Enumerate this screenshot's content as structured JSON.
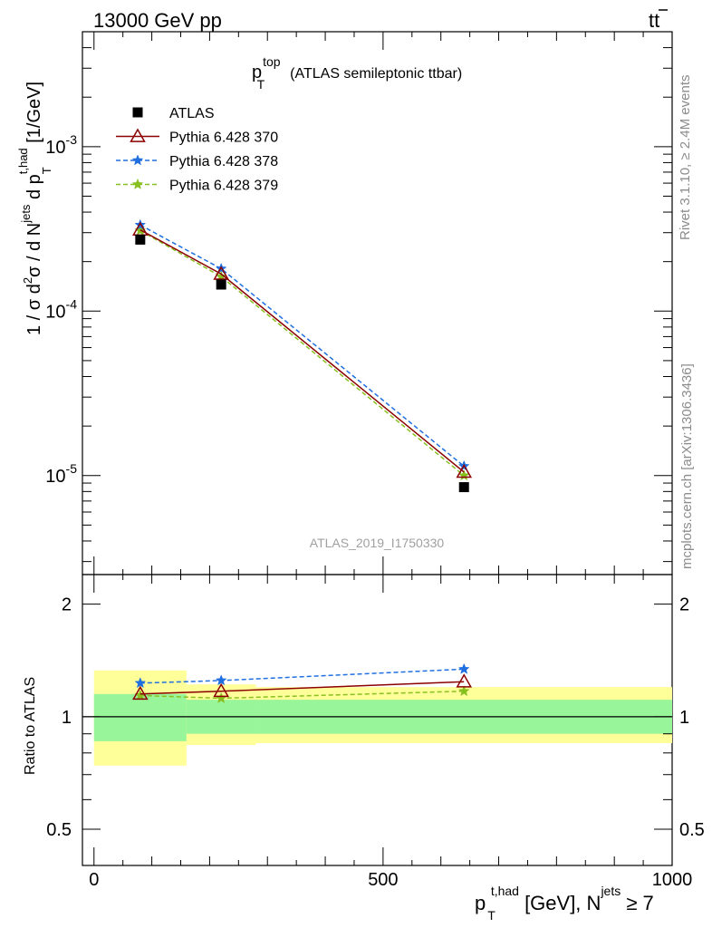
{
  "header": {
    "energy": "13000 GeV pp",
    "process_main": "tt",
    "process_bar": "t"
  },
  "title": {
    "main": "p",
    "sup": "top",
    "sub": "T",
    "rest": "(ATLAS semileptonic ttbar)"
  },
  "side_texts": {
    "rivet": "Rivet 3.1.10, ≥ 2.4M events",
    "mcplots": "mcplots.cern.ch [arXiv:1306.3436]"
  },
  "watermark": "ATLAS_2019_I1750330",
  "ylabel_main": {
    "pre": "1 / σ d",
    "sup1": "2",
    "mid1": "σ /  d N",
    "sup2": "jets",
    "mid2": " d p",
    "sub": "T",
    "sup3": "t,had",
    "post": " [1/GeV]"
  },
  "ylabel_ratio": "Ratio to ATLAS",
  "xlabel": {
    "pre": "p",
    "sub": "T",
    "sup": "t,had",
    "mid": " [GeV], N",
    "sup2": "jets",
    "post": " ≥ 7"
  },
  "legend": [
    {
      "label": "ATLAS",
      "color": "#000000",
      "marker": "square",
      "line": "none"
    },
    {
      "label": "Pythia 6.428 370",
      "color": "#8b0000",
      "marker": "triangle-open",
      "line": "solid"
    },
    {
      "label": "Pythia 6.428 378",
      "color": "#1f6fe0",
      "marker": "star",
      "line": "dashed"
    },
    {
      "label": "Pythia 6.428 379",
      "color": "#88c020",
      "marker": "star",
      "line": "dashed"
    }
  ],
  "chart_data": [
    {
      "type": "line",
      "panel": "main",
      "title": "p_T^top (ATLAS semileptonic ttbar)",
      "xlabel": "p_T^t,had [GeV], N^jets ≥ 7",
      "ylabel": "1 / σ d²σ / d N^jets d p_T^t,had [1/GeV]",
      "yscale": "log",
      "xlim": [
        -20,
        1000
      ],
      "ylim": [
        2.5e-06,
        0.005
      ],
      "x_ticks": [
        0,
        500,
        1000
      ],
      "y_tick_labels": [
        "10^-5",
        "10^-4",
        "10^-3"
      ],
      "bins": [
        [
          -20,
          160
        ],
        [
          160,
          280
        ],
        [
          280,
          1000
        ]
      ],
      "x": [
        80,
        220,
        640
      ],
      "series": [
        {
          "name": "ATLAS",
          "values": [
            0.000272,
            0.000145,
            8.5e-06
          ]
        },
        {
          "name": "Pythia 6.428 370",
          "values": [
            0.000312,
            0.000168,
            1.05e-05
          ]
        },
        {
          "name": "Pythia 6.428 378",
          "values": [
            0.000334,
            0.000181,
            1.14e-05
          ]
        },
        {
          "name": "Pythia 6.428 379",
          "values": [
            0.000309,
            0.000162,
            1e-05
          ]
        }
      ]
    },
    {
      "type": "line",
      "panel": "ratio",
      "ylabel": "Ratio to ATLAS",
      "yscale": "log",
      "xlim": [
        -20,
        1000
      ],
      "ylim": [
        0.4,
        2.4
      ],
      "y_ticks": [
        0.5,
        1,
        2
      ],
      "y_tick_labels": [
        "0.5",
        "1",
        "2"
      ],
      "x": [
        80,
        220,
        640
      ],
      "series": [
        {
          "name": "Pythia 6.428 370",
          "values": [
            1.15,
            1.17,
            1.24
          ]
        },
        {
          "name": "Pythia 6.428 378",
          "values": [
            1.23,
            1.25,
            1.34
          ]
        },
        {
          "name": "Pythia 6.428 379",
          "values": [
            1.14,
            1.12,
            1.17
          ]
        }
      ],
      "bands": [
        {
          "x": [
            0,
            160
          ],
          "green": [
            0.86,
            1.15
          ],
          "yellow": [
            0.74,
            1.33
          ]
        },
        {
          "x": [
            160,
            280
          ],
          "green": [
            0.9,
            1.11
          ],
          "yellow": [
            0.84,
            1.22
          ]
        },
        {
          "x": [
            280,
            1000
          ],
          "green": [
            0.9,
            1.11
          ],
          "yellow": [
            0.85,
            1.2
          ]
        }
      ]
    }
  ]
}
